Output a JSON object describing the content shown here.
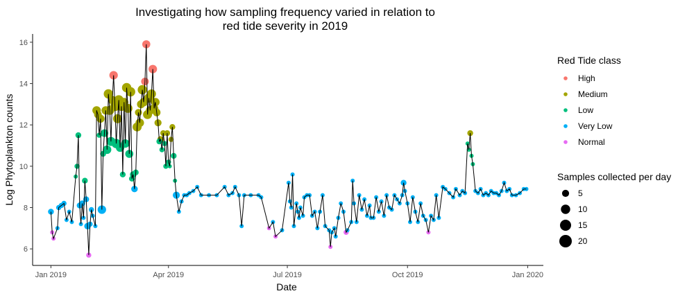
{
  "chart_data": {
    "type": "scatter",
    "title_line1": "Investigating how sampling frequency varied in relation to",
    "title_line2": "red tide severity in 2019",
    "xlabel": "Date",
    "ylabel": "Log Phytoplankton counts",
    "xlim": [
      "2018-12-18",
      "2020-01-13"
    ],
    "ylim": [
      5.2,
      16.4
    ],
    "x_ticks": [
      {
        "date": "2019-01-01",
        "label": "Jan 2019"
      },
      {
        "date": "2019-04-01",
        "label": "Apr 2019"
      },
      {
        "date": "2019-07-01",
        "label": "Jul 2019"
      },
      {
        "date": "2019-10-01",
        "label": "Oct 2019"
      },
      {
        "date": "2020-01-01",
        "label": "Jan 2020"
      }
    ],
    "y_ticks": [
      6,
      8,
      10,
      12,
      14,
      16
    ],
    "grid": false,
    "legend_placement": "right",
    "color_legend": {
      "title": "Red Tide class",
      "classes": [
        {
          "key": "H",
          "label": "High",
          "color": "#F8766D"
        },
        {
          "key": "M",
          "label": "Medium",
          "color": "#A3A500"
        },
        {
          "key": "L",
          "label": "Low",
          "color": "#00BF7D"
        },
        {
          "key": "V",
          "label": "Very Low",
          "color": "#00B0F6"
        },
        {
          "key": "N",
          "label": "Normal",
          "color": "#E76BF3"
        }
      ]
    },
    "size_legend": {
      "title": "Samples collected per day",
      "values": [
        5,
        10,
        15,
        20
      ]
    },
    "point_fields": [
      "date",
      "log_count",
      "class",
      "samples"
    ],
    "points": [
      [
        "2019-01-01",
        7.8,
        "V",
        3
      ],
      [
        "2019-01-02",
        6.8,
        "N",
        1
      ],
      [
        "2019-01-03",
        6.5,
        "N",
        1
      ],
      [
        "2019-01-06",
        7.0,
        "V",
        1
      ],
      [
        "2019-01-07",
        8.0,
        "V",
        2
      ],
      [
        "2019-01-09",
        8.1,
        "V",
        2
      ],
      [
        "2019-01-11",
        8.2,
        "V",
        2
      ],
      [
        "2019-01-13",
        7.4,
        "V",
        1
      ],
      [
        "2019-01-15",
        7.8,
        "V",
        1
      ],
      [
        "2019-01-17",
        7.3,
        "V",
        1
      ],
      [
        "2019-01-20",
        9.5,
        "L",
        1
      ],
      [
        "2019-01-21",
        10.0,
        "L",
        2
      ],
      [
        "2019-01-22",
        11.5,
        "L",
        3
      ],
      [
        "2019-01-23",
        8.1,
        "V",
        3
      ],
      [
        "2019-01-24",
        7.2,
        "V",
        1
      ],
      [
        "2019-01-25",
        8.2,
        "V",
        3
      ],
      [
        "2019-01-26",
        7.5,
        "V",
        1
      ],
      [
        "2019-01-27",
        9.3,
        "L",
        3
      ],
      [
        "2019-01-28",
        8.4,
        "V",
        3
      ],
      [
        "2019-01-29",
        7.1,
        "V",
        4
      ],
      [
        "2019-01-30",
        5.7,
        "N",
        2
      ],
      [
        "2019-01-31",
        7.2,
        "V",
        2
      ],
      [
        "2019-02-01",
        7.9,
        "V",
        2
      ],
      [
        "2019-02-02",
        7.6,
        "V",
        1
      ],
      [
        "2019-02-04",
        7.1,
        "V",
        1
      ],
      [
        "2019-02-05",
        12.7,
        "M",
        8
      ],
      [
        "2019-02-06",
        12.5,
        "M",
        6
      ],
      [
        "2019-02-07",
        11.5,
        "L",
        2
      ],
      [
        "2019-02-08",
        12.3,
        "M",
        7
      ],
      [
        "2019-02-09",
        7.9,
        "V",
        8
      ],
      [
        "2019-02-10",
        10.6,
        "L",
        3
      ],
      [
        "2019-02-11",
        11.6,
        "L",
        6
      ],
      [
        "2019-02-12",
        12.7,
        "M",
        8
      ],
      [
        "2019-02-13",
        10.8,
        "L",
        8
      ],
      [
        "2019-02-14",
        13.5,
        "M",
        10
      ],
      [
        "2019-02-15",
        12.7,
        "M",
        9
      ],
      [
        "2019-02-16",
        11.2,
        "L",
        9
      ],
      [
        "2019-02-17",
        13.2,
        "M",
        8
      ],
      [
        "2019-02-18",
        14.4,
        "H",
        8
      ],
      [
        "2019-02-19",
        12.9,
        "M",
        11
      ],
      [
        "2019-02-20",
        11.1,
        "L",
        10
      ],
      [
        "2019-02-21",
        12.3,
        "M",
        9
      ],
      [
        "2019-02-22",
        13.2,
        "M",
        11
      ],
      [
        "2019-02-23",
        10.9,
        "L",
        8
      ],
      [
        "2019-02-24",
        12.9,
        "M",
        10
      ],
      [
        "2019-02-25",
        9.6,
        "L",
        3
      ],
      [
        "2019-02-26",
        13.1,
        "M",
        8
      ],
      [
        "2019-02-27",
        11.1,
        "L",
        8
      ],
      [
        "2019-02-28",
        13.8,
        "M",
        10
      ],
      [
        "2019-03-01",
        12.8,
        "M",
        9
      ],
      [
        "2019-03-02",
        10.6,
        "L",
        7
      ],
      [
        "2019-03-03",
        13.6,
        "M",
        10
      ],
      [
        "2019-03-04",
        9.4,
        "L",
        3
      ],
      [
        "2019-03-05",
        9.6,
        "L",
        4
      ],
      [
        "2019-03-06",
        8.9,
        "V",
        4
      ],
      [
        "2019-03-07",
        9.7,
        "L",
        3
      ],
      [
        "2019-03-08",
        11.9,
        "M",
        9
      ],
      [
        "2019-03-09",
        12.6,
        "M",
        5
      ],
      [
        "2019-03-10",
        12.1,
        "M",
        8
      ],
      [
        "2019-03-11",
        13.0,
        "M",
        7
      ],
      [
        "2019-03-12",
        13.7,
        "M",
        10
      ],
      [
        "2019-03-13",
        13.1,
        "M",
        8
      ],
      [
        "2019-03-14",
        14.1,
        "H",
        6
      ],
      [
        "2019-03-15",
        15.9,
        "H",
        7
      ],
      [
        "2019-03-16",
        12.5,
        "M",
        9
      ],
      [
        "2019-03-17",
        13.3,
        "M",
        10
      ],
      [
        "2019-03-18",
        12.7,
        "M",
        8
      ],
      [
        "2019-03-19",
        13.5,
        "M",
        9
      ],
      [
        "2019-03-20",
        14.7,
        "H",
        8
      ],
      [
        "2019-03-21",
        12.8,
        "M",
        8
      ],
      [
        "2019-03-22",
        13.1,
        "M",
        8
      ],
      [
        "2019-03-23",
        12.6,
        "M",
        6
      ],
      [
        "2019-03-24",
        12.1,
        "M",
        5
      ],
      [
        "2019-03-25",
        11.2,
        "L",
        3
      ],
      [
        "2019-03-26",
        11.3,
        "M",
        4
      ],
      [
        "2019-03-27",
        10.8,
        "L",
        2
      ],
      [
        "2019-03-28",
        11.6,
        "M",
        3
      ],
      [
        "2019-03-29",
        11.1,
        "L",
        2
      ],
      [
        "2019-03-30",
        10.0,
        "L",
        2
      ],
      [
        "2019-03-31",
        11.6,
        "M",
        3
      ],
      [
        "2019-04-01",
        10.2,
        "L",
        2
      ],
      [
        "2019-04-02",
        10.0,
        "L",
        1
      ],
      [
        "2019-04-03",
        11.3,
        "M",
        2
      ],
      [
        "2019-04-04",
        11.9,
        "M",
        3
      ],
      [
        "2019-04-05",
        10.5,
        "L",
        3
      ],
      [
        "2019-04-06",
        9.3,
        "L",
        1
      ],
      [
        "2019-04-07",
        8.6,
        "V",
        5
      ],
      [
        "2019-04-09",
        7.8,
        "V",
        1
      ],
      [
        "2019-04-11",
        8.3,
        "V",
        1
      ],
      [
        "2019-04-13",
        8.6,
        "V",
        1
      ],
      [
        "2019-04-15",
        8.6,
        "V",
        1
      ],
      [
        "2019-04-17",
        8.7,
        "V",
        1
      ],
      [
        "2019-04-20",
        8.8,
        "V",
        1
      ],
      [
        "2019-04-23",
        9.0,
        "V",
        1
      ],
      [
        "2019-04-26",
        8.6,
        "V",
        1
      ],
      [
        "2019-05-02",
        8.6,
        "V",
        1
      ],
      [
        "2019-05-08",
        8.6,
        "V",
        1
      ],
      [
        "2019-05-14",
        9.0,
        "V",
        1
      ],
      [
        "2019-05-17",
        8.6,
        "V",
        1
      ],
      [
        "2019-05-20",
        8.7,
        "V",
        1
      ],
      [
        "2019-05-22",
        9.0,
        "V",
        1
      ],
      [
        "2019-05-25",
        8.6,
        "V",
        1
      ],
      [
        "2019-05-27",
        7.1,
        "V",
        1
      ],
      [
        "2019-05-29",
        8.6,
        "V",
        1
      ],
      [
        "2019-06-03",
        8.6,
        "V",
        1
      ],
      [
        "2019-06-09",
        8.6,
        "V",
        1
      ],
      [
        "2019-06-11",
        8.5,
        "V",
        1
      ],
      [
        "2019-06-17",
        7.0,
        "N",
        1
      ],
      [
        "2019-06-20",
        7.3,
        "V",
        1
      ],
      [
        "2019-06-22",
        6.6,
        "N",
        1
      ],
      [
        "2019-06-27",
        6.9,
        "V",
        1
      ],
      [
        "2019-07-02",
        9.2,
        "V",
        1
      ],
      [
        "2019-07-03",
        8.3,
        "V",
        1
      ],
      [
        "2019-07-04",
        8.0,
        "V",
        1
      ],
      [
        "2019-07-05",
        9.6,
        "V",
        1
      ],
      [
        "2019-07-06",
        7.1,
        "V",
        1
      ],
      [
        "2019-07-08",
        8.2,
        "V",
        1
      ],
      [
        "2019-07-09",
        7.8,
        "V",
        1
      ],
      [
        "2019-07-10",
        7.5,
        "V",
        1
      ],
      [
        "2019-07-11",
        8.0,
        "V",
        1
      ],
      [
        "2019-07-13",
        7.6,
        "V",
        1
      ],
      [
        "2019-07-14",
        8.5,
        "V",
        1
      ],
      [
        "2019-07-16",
        8.6,
        "V",
        1
      ],
      [
        "2019-07-18",
        8.6,
        "V",
        1
      ],
      [
        "2019-07-20",
        7.6,
        "V",
        1
      ],
      [
        "2019-07-22",
        7.8,
        "V",
        1
      ],
      [
        "2019-07-24",
        7.0,
        "V",
        1
      ],
      [
        "2019-07-26",
        7.8,
        "V",
        1
      ],
      [
        "2019-07-28",
        8.6,
        "V",
        1
      ],
      [
        "2019-07-30",
        7.1,
        "V",
        1
      ],
      [
        "2019-08-02",
        6.9,
        "V",
        1
      ],
      [
        "2019-08-03",
        6.1,
        "N",
        1
      ],
      [
        "2019-08-04",
        6.8,
        "V",
        1
      ],
      [
        "2019-08-06",
        7.0,
        "V",
        1
      ],
      [
        "2019-08-07",
        6.6,
        "V",
        1
      ],
      [
        "2019-08-09",
        7.5,
        "V",
        1
      ],
      [
        "2019-08-11",
        8.2,
        "V",
        1
      ],
      [
        "2019-08-13",
        7.8,
        "V",
        1
      ],
      [
        "2019-08-15",
        6.8,
        "N",
        2
      ],
      [
        "2019-08-16",
        6.9,
        "V",
        1
      ],
      [
        "2019-08-19",
        7.3,
        "V",
        1
      ],
      [
        "2019-08-20",
        9.3,
        "V",
        1
      ],
      [
        "2019-08-21",
        8.2,
        "V",
        1
      ],
      [
        "2019-08-23",
        7.3,
        "V",
        1
      ],
      [
        "2019-08-25",
        8.6,
        "V",
        1
      ],
      [
        "2019-08-27",
        7.9,
        "V",
        1
      ],
      [
        "2019-08-29",
        8.4,
        "V",
        1
      ],
      [
        "2019-08-31",
        7.6,
        "V",
        1
      ],
      [
        "2019-09-02",
        8.1,
        "V",
        1
      ],
      [
        "2019-09-03",
        7.5,
        "V",
        1
      ],
      [
        "2019-09-05",
        7.5,
        "V",
        1
      ],
      [
        "2019-09-07",
        8.5,
        "V",
        1
      ],
      [
        "2019-09-09",
        7.8,
        "V",
        1
      ],
      [
        "2019-09-11",
        8.3,
        "V",
        1
      ],
      [
        "2019-09-13",
        7.6,
        "V",
        1
      ],
      [
        "2019-09-15",
        8.6,
        "V",
        1
      ],
      [
        "2019-09-17",
        8.0,
        "V",
        1
      ],
      [
        "2019-09-19",
        7.9,
        "V",
        1
      ],
      [
        "2019-09-21",
        8.6,
        "V",
        1
      ],
      [
        "2019-09-23",
        8.4,
        "V",
        1
      ],
      [
        "2019-09-25",
        8.2,
        "V",
        1
      ],
      [
        "2019-09-27",
        8.6,
        "V",
        1
      ],
      [
        "2019-09-28",
        9.2,
        "V",
        3
      ],
      [
        "2019-09-29",
        8.8,
        "V",
        1
      ],
      [
        "2019-10-01",
        8.2,
        "V",
        1
      ],
      [
        "2019-10-03",
        7.3,
        "V",
        1
      ],
      [
        "2019-10-05",
        8.5,
        "V",
        1
      ],
      [
        "2019-10-07",
        7.8,
        "V",
        1
      ],
      [
        "2019-10-09",
        7.3,
        "V",
        1
      ],
      [
        "2019-10-11",
        8.2,
        "V",
        1
      ],
      [
        "2019-10-13",
        7.6,
        "V",
        1
      ],
      [
        "2019-10-15",
        7.4,
        "V",
        1
      ],
      [
        "2019-10-17",
        6.8,
        "N",
        1
      ],
      [
        "2019-10-19",
        7.6,
        "V",
        1
      ],
      [
        "2019-10-21",
        7.4,
        "V",
        1
      ],
      [
        "2019-10-23",
        8.6,
        "V",
        1
      ],
      [
        "2019-10-25",
        7.5,
        "V",
        1
      ],
      [
        "2019-10-28",
        9.0,
        "V",
        1
      ],
      [
        "2019-10-30",
        8.9,
        "V",
        1
      ],
      [
        "2019-11-02",
        8.7,
        "V",
        1
      ],
      [
        "2019-11-05",
        8.5,
        "V",
        1
      ],
      [
        "2019-11-07",
        8.9,
        "V",
        1
      ],
      [
        "2019-11-10",
        8.6,
        "V",
        1
      ],
      [
        "2019-11-12",
        8.8,
        "V",
        1
      ],
      [
        "2019-11-14",
        8.7,
        "V",
        1
      ],
      [
        "2019-11-16",
        11.1,
        "L",
        1
      ],
      [
        "2019-11-17",
        10.8,
        "L",
        1
      ],
      [
        "2019-11-18",
        11.6,
        "M",
        3
      ],
      [
        "2019-11-19",
        10.5,
        "L",
        1
      ],
      [
        "2019-11-20",
        10.1,
        "L",
        1
      ],
      [
        "2019-11-22",
        8.8,
        "V",
        1
      ],
      [
        "2019-11-24",
        8.7,
        "V",
        1
      ],
      [
        "2019-11-26",
        8.9,
        "V",
        1
      ],
      [
        "2019-11-28",
        8.6,
        "V",
        1
      ],
      [
        "2019-11-30",
        8.7,
        "V",
        1
      ],
      [
        "2019-12-02",
        8.6,
        "V",
        1
      ],
      [
        "2019-12-04",
        8.8,
        "V",
        1
      ],
      [
        "2019-12-06",
        8.7,
        "V",
        1
      ],
      [
        "2019-12-08",
        8.7,
        "V",
        1
      ],
      [
        "2019-12-10",
        8.6,
        "V",
        1
      ],
      [
        "2019-12-12",
        8.8,
        "V",
        1
      ],
      [
        "2019-12-14",
        9.2,
        "V",
        1
      ],
      [
        "2019-12-16",
        8.8,
        "V",
        1
      ],
      [
        "2019-12-18",
        8.9,
        "V",
        1
      ],
      [
        "2019-12-20",
        8.6,
        "V",
        1
      ],
      [
        "2019-12-23",
        8.6,
        "V",
        1
      ],
      [
        "2019-12-26",
        8.7,
        "V",
        1
      ],
      [
        "2019-12-29",
        8.9,
        "V",
        1
      ],
      [
        "2019-12-31",
        8.9,
        "V",
        1
      ]
    ]
  }
}
